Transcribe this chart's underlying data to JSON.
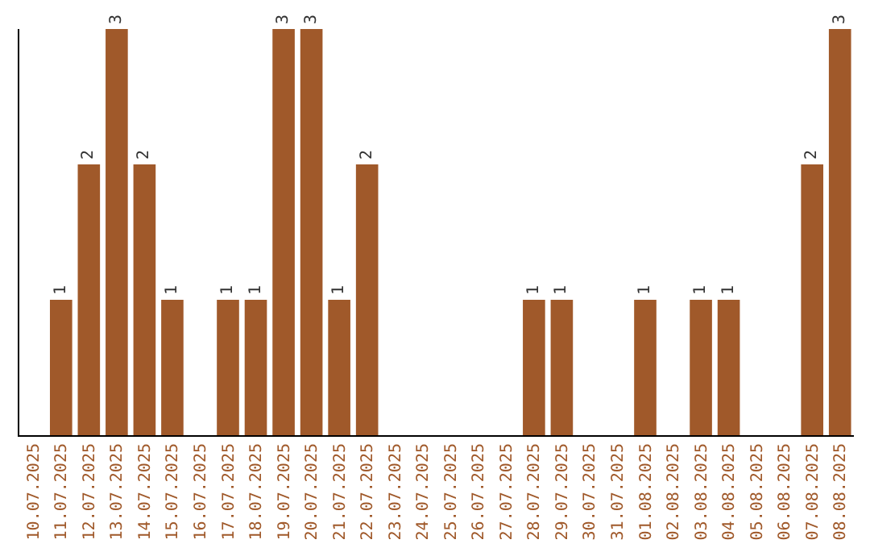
{
  "chart_data": {
    "type": "bar",
    "categories": [
      "10.07.2025",
      "11.07.2025",
      "12.07.2025",
      "13.07.2025",
      "14.07.2025",
      "15.07.2025",
      "16.07.2025",
      "17.07.2025",
      "18.07.2025",
      "19.07.2025",
      "20.07.2025",
      "21.07.2025",
      "22.07.2025",
      "23.07.2025",
      "24.07.2025",
      "25.07.2025",
      "26.07.2025",
      "27.07.2025",
      "28.07.2025",
      "29.07.2025",
      "30.07.2025",
      "31.07.2025",
      "01.08.2025",
      "02.08.2025",
      "03.08.2025",
      "04.08.2025",
      "05.08.2025",
      "06.08.2025",
      "07.08.2025",
      "08.08.2025"
    ],
    "values": [
      0,
      1,
      2,
      3,
      2,
      1,
      0,
      1,
      1,
      3,
      3,
      1,
      2,
      0,
      0,
      0,
      0,
      0,
      1,
      1,
      0,
      0,
      1,
      0,
      1,
      1,
      0,
      0,
      2,
      3
    ],
    "value_labels": [
      null,
      "1",
      "2",
      "3",
      "2",
      "1",
      null,
      "1",
      "1",
      "3",
      "3",
      "1",
      "2",
      null,
      null,
      null,
      null,
      null,
      "1",
      "1",
      null,
      null,
      "1",
      null,
      "1",
      "1",
      null,
      null,
      "2",
      "3"
    ],
    "color": "#a0592a",
    "ylim": [
      0,
      3
    ],
    "tick_labels": "x"
  }
}
